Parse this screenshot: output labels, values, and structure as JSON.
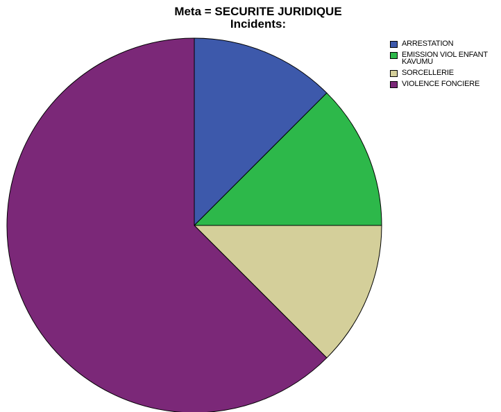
{
  "chart_data": {
    "type": "pie",
    "title_line1": "Meta = SECURITE JURIDIQUE",
    "title_line2": "Incidents:",
    "legend_position": "top-right",
    "categories": [
      "ARRESTATION",
      "EMISSION VIOL ENFANT KAVUMU",
      "SORCELLERIE",
      "VIOLENCE FONCIERE"
    ],
    "values": [
      12.5,
      12.5,
      12.5,
      62.5
    ],
    "colors": [
      "#3d59ab",
      "#2db84a",
      "#d4cf9a",
      "#7b2878"
    ],
    "start_angle": 0,
    "direction": "clockwise"
  },
  "legend": {
    "items": [
      {
        "label": "ARRESTATION",
        "color": "#3d59ab"
      },
      {
        "label": "EMISSION VIOL ENFANT KAVUMU",
        "color": "#2db84a"
      },
      {
        "label": "SORCELLERIE",
        "color": "#d4cf9a"
      },
      {
        "label": "VIOLENCE FONCIERE",
        "color": "#7b2878"
      }
    ]
  }
}
